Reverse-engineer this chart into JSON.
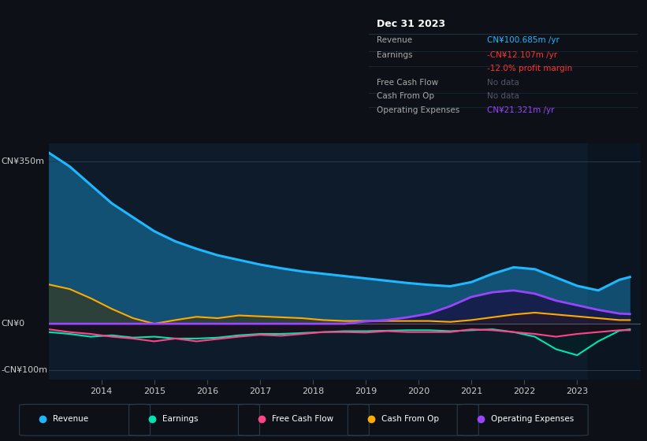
{
  "bg_color": "#0d1117",
  "chart_bg": "#0d1b2a",
  "chart_bg_right": "#111d2e",
  "title": "Dec 31 2023",
  "ylim": [
    -120,
    390
  ],
  "ytick_positions": [
    350,
    0,
    -100
  ],
  "ytick_labels": [
    "CN¥350m",
    "CN¥0",
    "-CN¥100m"
  ],
  "years": [
    2013.0,
    2013.4,
    2013.8,
    2014.2,
    2014.6,
    2015.0,
    2015.4,
    2015.8,
    2016.2,
    2016.6,
    2017.0,
    2017.4,
    2017.8,
    2018.2,
    2018.6,
    2019.0,
    2019.4,
    2019.8,
    2020.2,
    2020.6,
    2021.0,
    2021.4,
    2021.8,
    2022.2,
    2022.6,
    2023.0,
    2023.4,
    2023.8,
    2024.0
  ],
  "revenue": [
    370,
    340,
    300,
    260,
    230,
    200,
    178,
    162,
    148,
    138,
    128,
    120,
    113,
    108,
    103,
    98,
    93,
    88,
    84,
    81,
    90,
    108,
    122,
    118,
    100,
    82,
    72,
    95,
    101
  ],
  "earnings": [
    -18,
    -22,
    -28,
    -25,
    -30,
    -28,
    -32,
    -32,
    -30,
    -25,
    -22,
    -22,
    -20,
    -18,
    -16,
    -16,
    -15,
    -14,
    -14,
    -16,
    -14,
    -12,
    -18,
    -28,
    -55,
    -68,
    -38,
    -15,
    -12
  ],
  "free_cash_flow": [
    -12,
    -18,
    -22,
    -28,
    -32,
    -38,
    -32,
    -38,
    -33,
    -28,
    -24,
    -26,
    -22,
    -18,
    -18,
    -19,
    -16,
    -18,
    -18,
    -18,
    -12,
    -14,
    -18,
    -22,
    -28,
    -22,
    -18,
    -14,
    -14
  ],
  "cash_from_op": [
    85,
    75,
    55,
    32,
    12,
    0,
    8,
    15,
    12,
    18,
    16,
    14,
    12,
    8,
    6,
    6,
    6,
    6,
    6,
    4,
    8,
    14,
    20,
    24,
    20,
    16,
    12,
    8,
    8
  ],
  "op_expenses": [
    0,
    0,
    0,
    0,
    0,
    0,
    0,
    0,
    0,
    0,
    0,
    0,
    0,
    0,
    0,
    5,
    8,
    14,
    22,
    38,
    58,
    68,
    72,
    65,
    50,
    40,
    30,
    22,
    21
  ],
  "revenue_color": "#1eb8ff",
  "earnings_color": "#00e5b0",
  "free_cash_flow_color": "#ff4488",
  "cash_from_op_color": "#ffaa00",
  "op_expenses_color": "#9944ff",
  "xlim": [
    2013.0,
    2024.2
  ],
  "xticks": [
    2014,
    2015,
    2016,
    2017,
    2018,
    2019,
    2020,
    2021,
    2022,
    2023
  ],
  "dark_band_start": 2023.2,
  "info_box_rows": [
    {
      "label": "Revenue",
      "value": "CN¥100.685m /yr",
      "label_color": "#aaaaaa",
      "value_color": "#1eb8ff"
    },
    {
      "label": "Earnings",
      "value": "-CN¥12.107m /yr",
      "label_color": "#aaaaaa",
      "value_color": "#ff3333"
    },
    {
      "label": "",
      "value": "-12.0% profit margin",
      "label_color": "",
      "value_color": "#ff3333"
    },
    {
      "label": "Free Cash Flow",
      "value": "No data",
      "label_color": "#aaaaaa",
      "value_color": "#555566"
    },
    {
      "label": "Cash From Op",
      "value": "No data",
      "label_color": "#aaaaaa",
      "value_color": "#555566"
    },
    {
      "label": "Operating Expenses",
      "value": "CN¥21.321m /yr",
      "label_color": "#aaaaaa",
      "value_color": "#9944ff"
    }
  ],
  "legend_items": [
    {
      "label": "Revenue",
      "color": "#1eb8ff"
    },
    {
      "label": "Earnings",
      "color": "#00e5b0"
    },
    {
      "label": "Free Cash Flow",
      "color": "#ff4488"
    },
    {
      "label": "Cash From Op",
      "color": "#ffaa00"
    },
    {
      "label": "Operating Expenses",
      "color": "#9944ff"
    }
  ]
}
